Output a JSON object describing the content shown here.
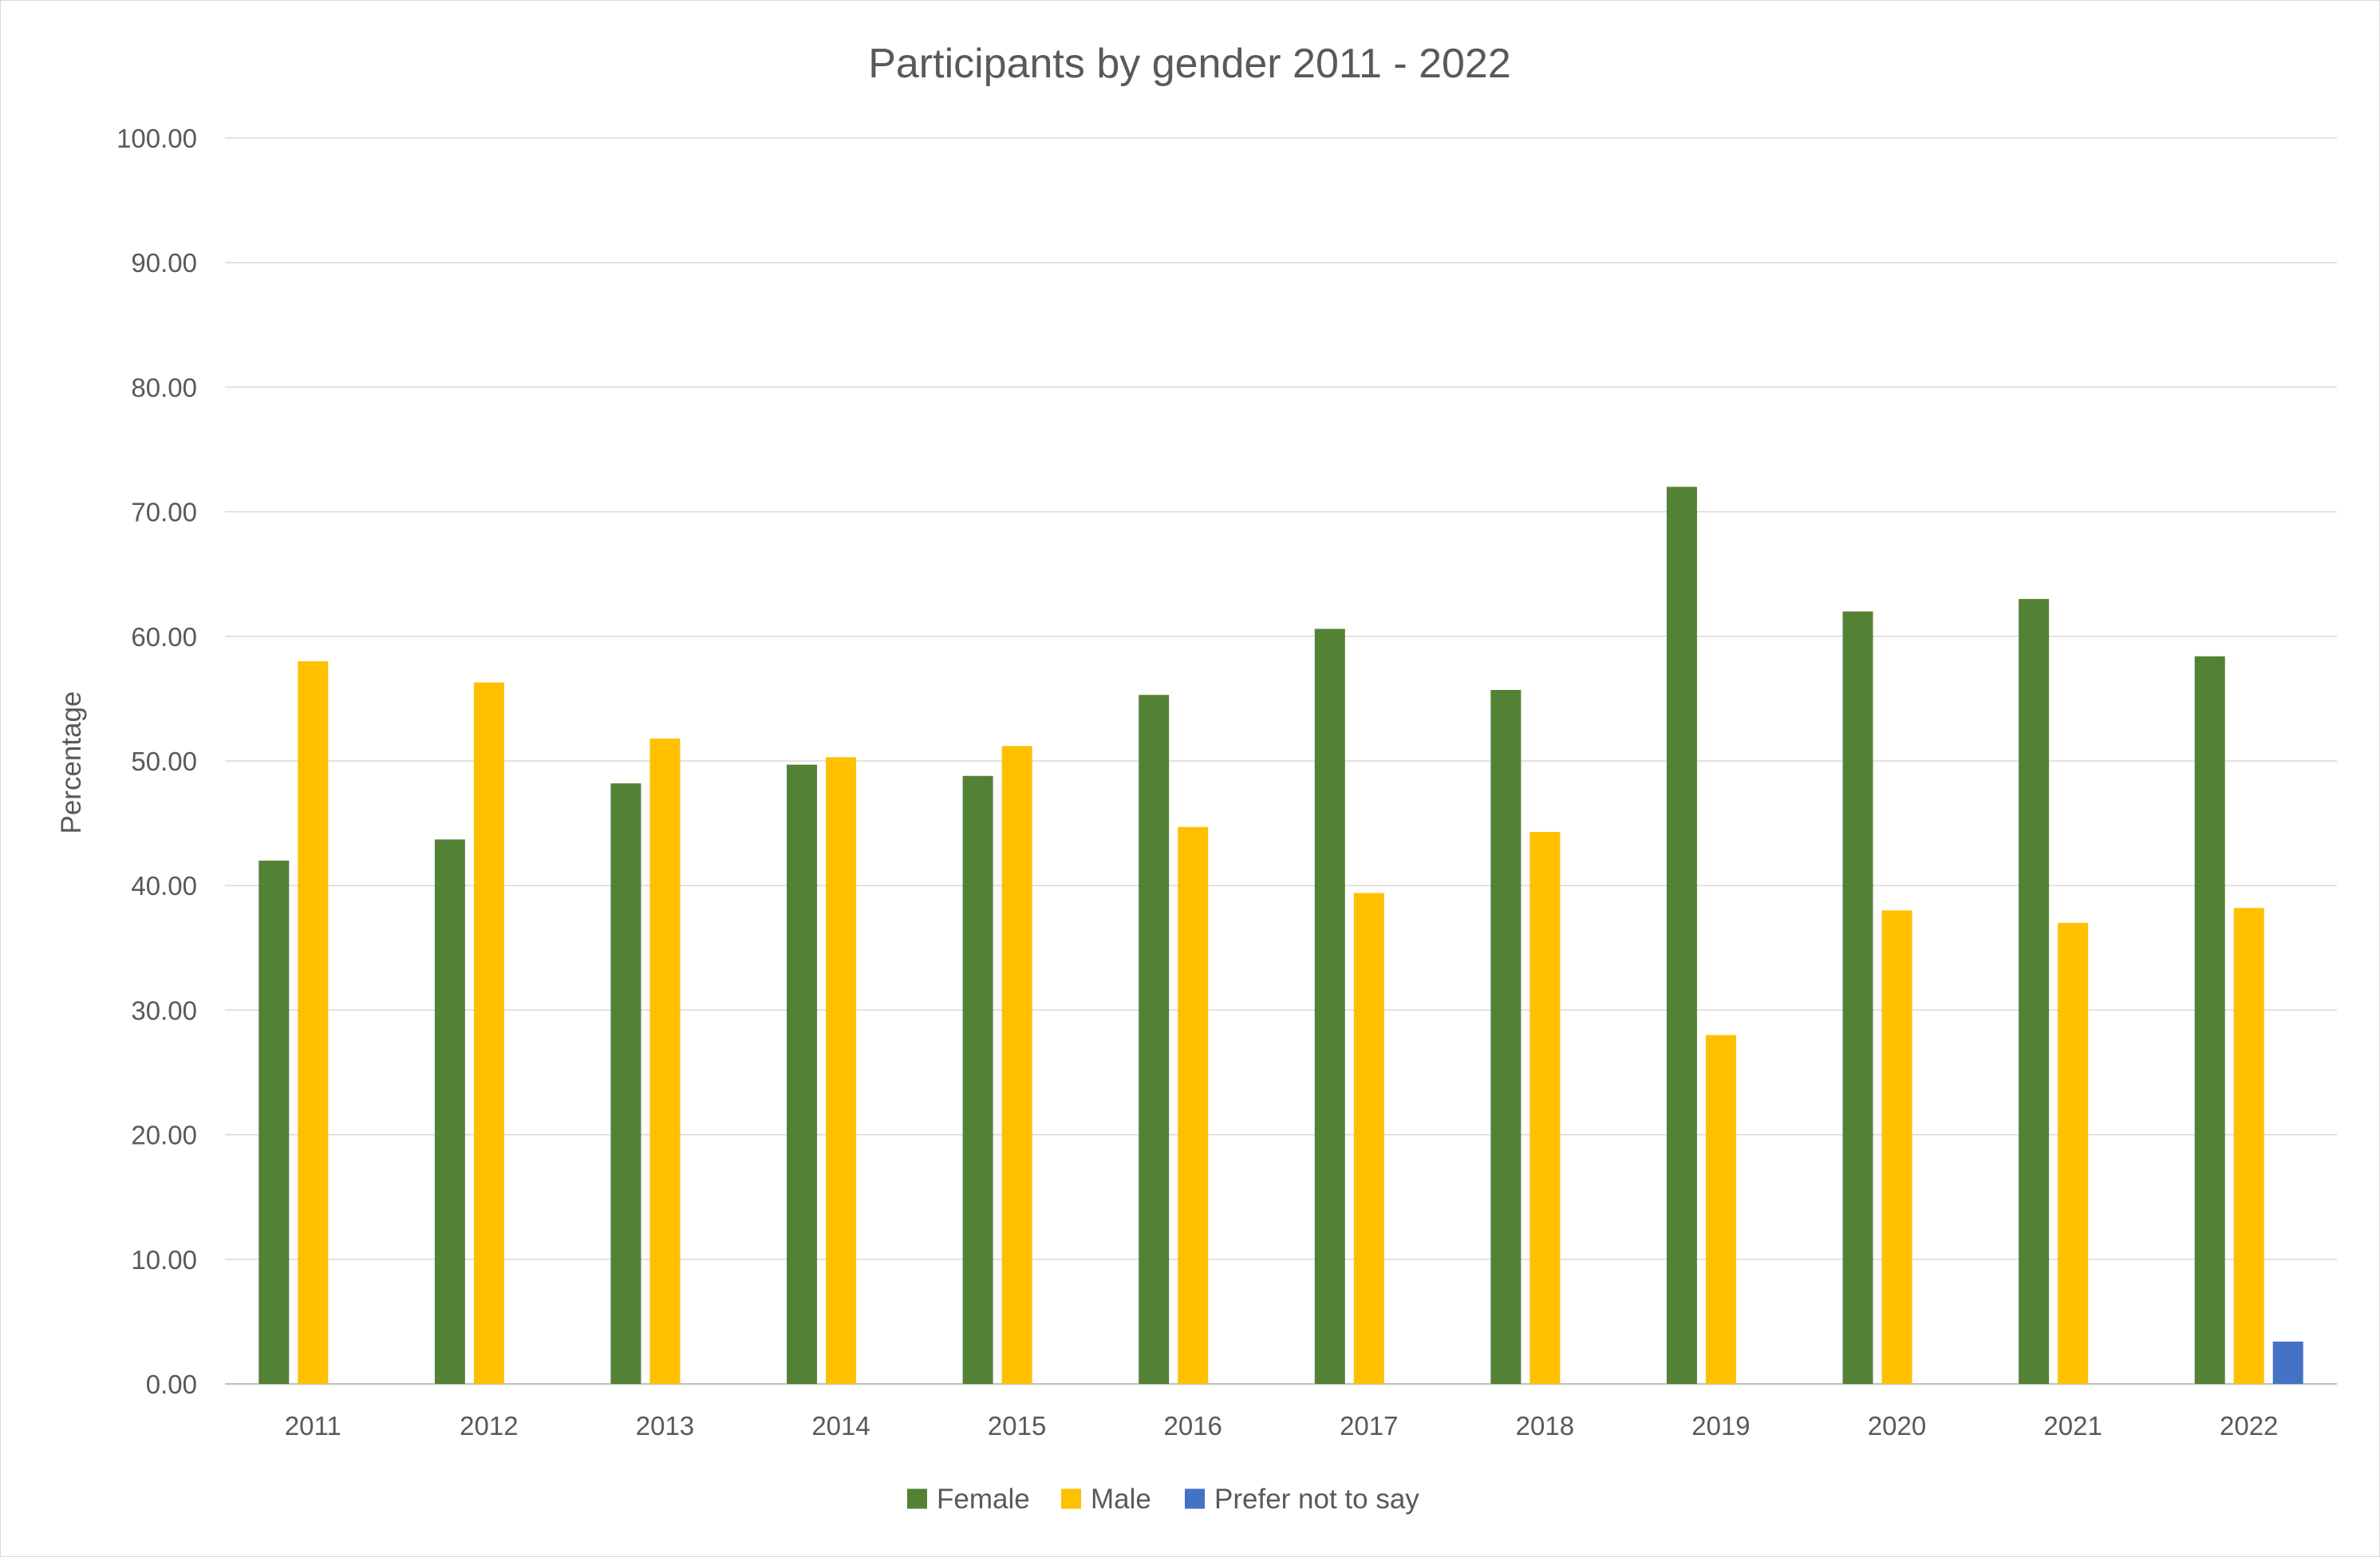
{
  "chart_data": {
    "type": "bar",
    "title": "Participants by gender 2011 - 2022",
    "xlabel": "",
    "ylabel": "Percentage",
    "ylim": [
      0,
      100
    ],
    "yticks": [
      "0.00",
      "10.00",
      "20.00",
      "30.00",
      "40.00",
      "50.00",
      "60.00",
      "70.00",
      "80.00",
      "90.00",
      "100.00"
    ],
    "categories": [
      "2011",
      "2012",
      "2013",
      "2014",
      "2015",
      "2016",
      "2017",
      "2018",
      "2019",
      "2020",
      "2021",
      "2022"
    ],
    "series": [
      {
        "name": "Female",
        "color": "#548235",
        "values": [
          42.0,
          43.7,
          48.2,
          49.7,
          48.8,
          55.3,
          60.6,
          55.7,
          72.0,
          62.0,
          63.0,
          58.4
        ]
      },
      {
        "name": "Male",
        "color": "#FFC000",
        "values": [
          58.0,
          56.3,
          51.8,
          50.3,
          51.2,
          44.7,
          39.4,
          44.3,
          28.0,
          38.0,
          37.0,
          38.2
        ]
      },
      {
        "name": "Prefer not to say",
        "color": "#4472C4",
        "values": [
          null,
          null,
          null,
          null,
          null,
          null,
          null,
          null,
          null,
          null,
          null,
          3.4
        ]
      }
    ],
    "grid": true,
    "legend_position": "bottom"
  }
}
